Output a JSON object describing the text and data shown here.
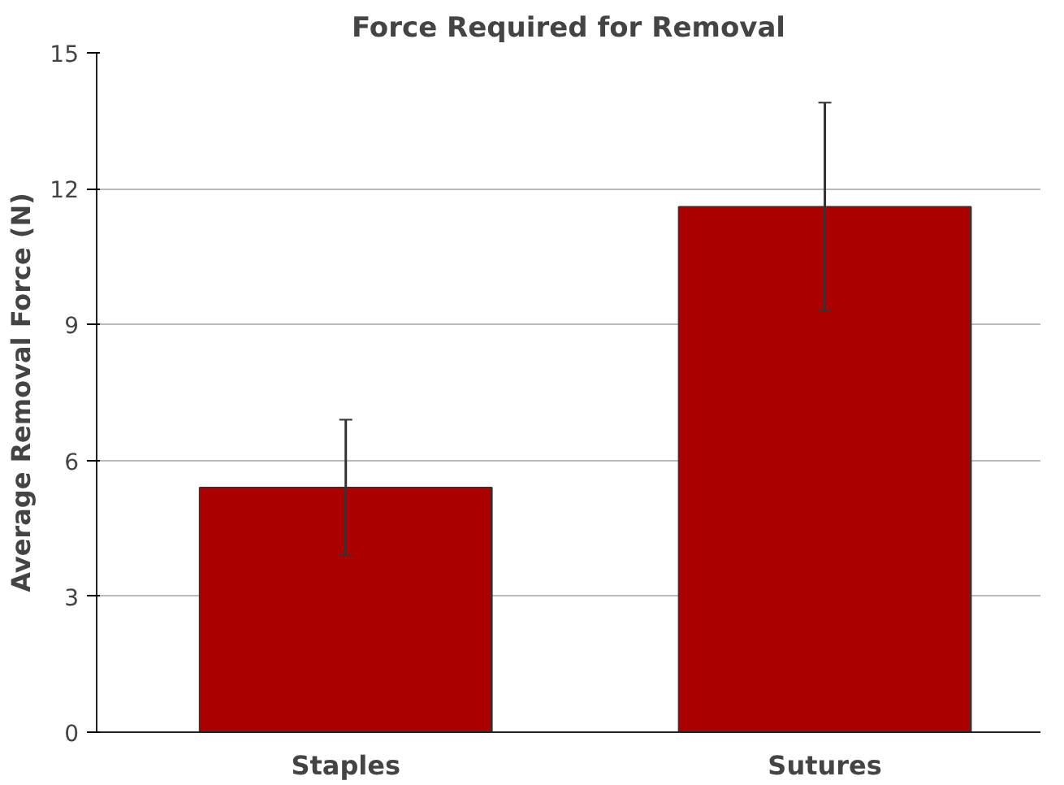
{
  "chart_data": {
    "type": "bar",
    "title": "Force Required for Removal",
    "ylabel": "Average Removal Force (N)",
    "categories": [
      "Staples",
      "Sutures"
    ],
    "values": [
      5.4,
      11.6
    ],
    "errors": [
      1.5,
      2.3
    ],
    "color": "#aa0000",
    "ylim": [
      0,
      15
    ],
    "yticks": [
      0,
      3,
      6,
      9,
      12,
      15
    ],
    "grid": "y"
  }
}
